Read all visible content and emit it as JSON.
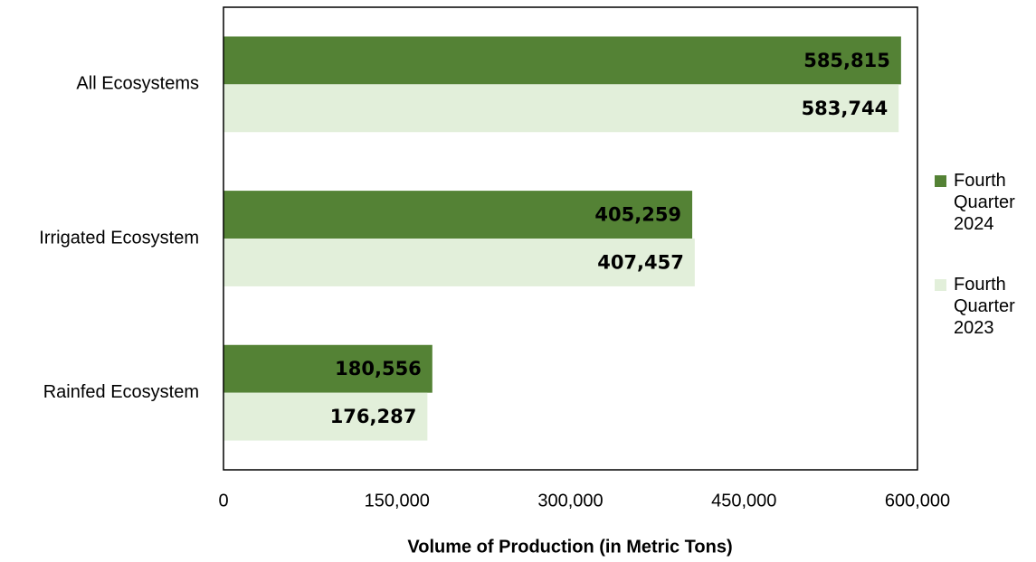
{
  "chart_data": {
    "type": "bar",
    "orientation": "horizontal",
    "x_label": "Volume of Production (in Metric Tons)",
    "categories": [
      "All Ecosystems",
      "Irrigated Ecosystem",
      "Rainfed Ecosystem"
    ],
    "series": [
      {
        "name": "Fourth Quarter 2024",
        "color": "#548235",
        "values": [
          585815,
          405259,
          180556
        ],
        "value_labels": [
          "585,815",
          "405,259",
          "180,556"
        ]
      },
      {
        "name": "Fourth Quarter 2023",
        "color": "#e2efda",
        "values": [
          583744,
          407457,
          176287
        ],
        "value_labels": [
          "583,744",
          "407,457",
          "176,287"
        ]
      }
    ],
    "xlim": [
      0,
      600000
    ],
    "xticks": [
      0,
      {
        "value": 150000,
        "label": "150,000"
      },
      {
        "value": 300000,
        "label": "300,000"
      },
      {
        "value": 450000,
        "label": "450,000"
      },
      {
        "value": 600000,
        "label": "600,000"
      }
    ],
    "grid": false,
    "legend": "right"
  }
}
